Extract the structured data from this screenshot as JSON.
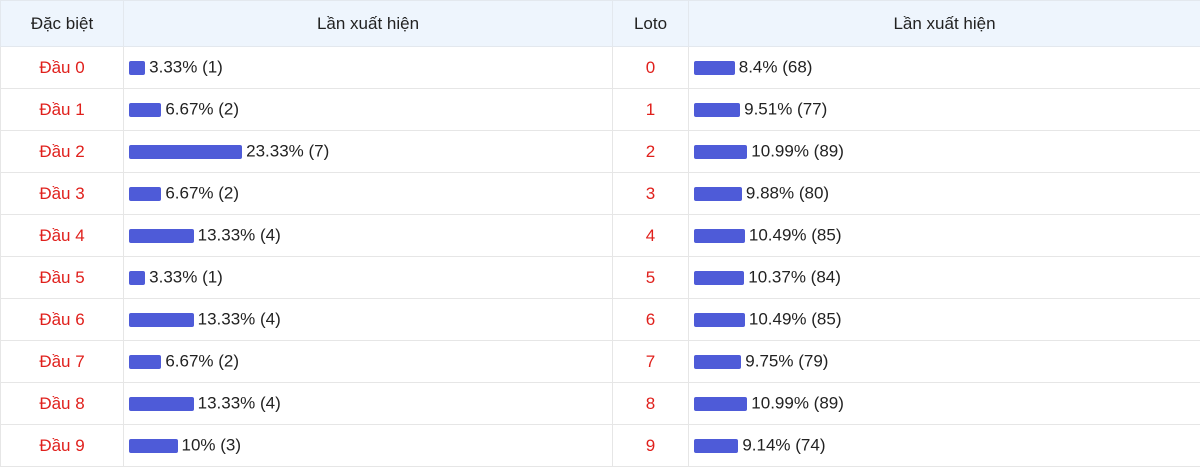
{
  "table": {
    "headers": [
      "Đặc biệt",
      "Lần xuất hiện",
      "Loto",
      "Lần xuất hiện"
    ],
    "special": [
      {
        "label": "Đầu 0",
        "percent": 3.33,
        "text": "3.33% (1)"
      },
      {
        "label": "Đầu 1",
        "percent": 6.67,
        "text": "6.67% (2)"
      },
      {
        "label": "Đầu 2",
        "percent": 23.33,
        "text": "23.33% (7)"
      },
      {
        "label": "Đầu 3",
        "percent": 6.67,
        "text": "6.67% (2)"
      },
      {
        "label": "Đầu 4",
        "percent": 13.33,
        "text": "13.33% (4)"
      },
      {
        "label": "Đầu 5",
        "percent": 3.33,
        "text": "3.33% (1)"
      },
      {
        "label": "Đầu 6",
        "percent": 13.33,
        "text": "13.33% (4)"
      },
      {
        "label": "Đầu 7",
        "percent": 6.67,
        "text": "6.67% (2)"
      },
      {
        "label": "Đầu 8",
        "percent": 13.33,
        "text": "13.33% (4)"
      },
      {
        "label": "Đầu 9",
        "percent": 10,
        "text": "10% (3)"
      }
    ],
    "loto": [
      {
        "label": "0",
        "percent": 8.4,
        "text": "8.4% (68)"
      },
      {
        "label": "1",
        "percent": 9.51,
        "text": "9.51% (77)"
      },
      {
        "label": "2",
        "percent": 10.99,
        "text": "10.99% (89)"
      },
      {
        "label": "3",
        "percent": 9.88,
        "text": "9.88% (80)"
      },
      {
        "label": "4",
        "percent": 10.49,
        "text": "10.49% (85)"
      },
      {
        "label": "5",
        "percent": 10.37,
        "text": "10.37% (84)"
      },
      {
        "label": "6",
        "percent": 10.49,
        "text": "10.49% (85)"
      },
      {
        "label": "7",
        "percent": 9.75,
        "text": "9.75% (79)"
      },
      {
        "label": "8",
        "percent": 10.99,
        "text": "10.99% (89)"
      },
      {
        "label": "9",
        "percent": 9.14,
        "text": "9.14% (74)"
      }
    ]
  }
}
